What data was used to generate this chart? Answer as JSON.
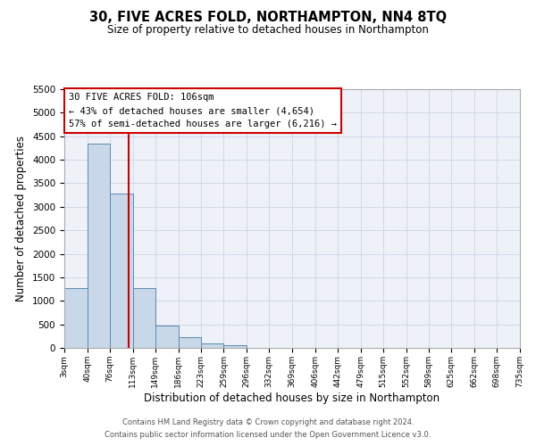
{
  "title": "30, FIVE ACRES FOLD, NORTHAMPTON, NN4 8TQ",
  "subtitle": "Size of property relative to detached houses in Northampton",
  "xlabel": "Distribution of detached houses by size in Northampton",
  "ylabel": "Number of detached properties",
  "bar_edges": [
    3,
    40,
    76,
    113,
    149,
    186,
    223,
    259,
    296,
    332,
    369,
    406,
    442,
    479,
    515,
    552,
    589,
    625,
    662,
    698,
    735
  ],
  "bar_heights": [
    1270,
    4350,
    3280,
    1270,
    480,
    230,
    90,
    55,
    0,
    0,
    0,
    0,
    0,
    0,
    0,
    0,
    0,
    0,
    0,
    0
  ],
  "bar_color": "#c8d8e8",
  "bar_edgecolor": "#5a8ab0",
  "property_line_x": 106,
  "property_line_color": "#cc0000",
  "ylim": [
    0,
    5500
  ],
  "yticks": [
    0,
    500,
    1000,
    1500,
    2000,
    2500,
    3000,
    3500,
    4000,
    4500,
    5000,
    5500
  ],
  "tick_labels": [
    "3sqm",
    "40sqm",
    "76sqm",
    "113sqm",
    "149sqm",
    "186sqm",
    "223sqm",
    "259sqm",
    "296sqm",
    "332sqm",
    "369sqm",
    "406sqm",
    "442sqm",
    "479sqm",
    "515sqm",
    "552sqm",
    "589sqm",
    "625sqm",
    "662sqm",
    "698sqm",
    "735sqm"
  ],
  "annotation_box_title": "30 FIVE ACRES FOLD: 106sqm",
  "annotation_line1": "← 43% of detached houses are smaller (4,654)",
  "annotation_line2": "57% of semi-detached houses are larger (6,216) →",
  "annotation_box_edgecolor": "#cc0000",
  "footer_line1": "Contains HM Land Registry data © Crown copyright and database right 2024.",
  "footer_line2": "Contains public sector information licensed under the Open Government Licence v3.0.",
  "grid_color": "#d0d8e8",
  "background_color": "#eef2f8"
}
